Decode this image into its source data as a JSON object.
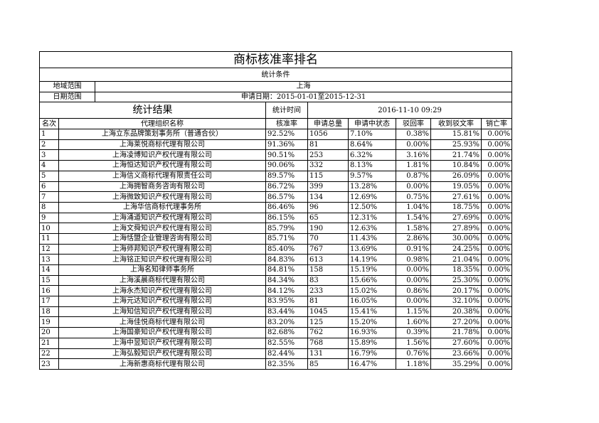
{
  "title": "商标核准率排名",
  "conditions_label": "统计条件",
  "region_label": "地域范围",
  "region_value": "上海",
  "date_label": "日期范围",
  "date_value": "申请日期：2015-01-01至2015-12-31",
  "result_label": "统计结果",
  "time_label": "统计时间",
  "time_value": "2016-11-10 09:29",
  "columns": [
    "名次",
    "代理组织名称",
    "核准率",
    "申请总量",
    "申请中状态",
    "驳回率",
    "收到驳文率",
    "销亡率"
  ],
  "rows": [
    [
      "1",
      "上海立东品牌策划事务所（普通合伙）",
      "92.52%",
      "1056",
      "7.10%",
      "0.38%",
      "15.81%",
      "0.00%"
    ],
    [
      "2",
      "上海莱悦商标代理有限公司",
      "91.36%",
      "81",
      "8.64%",
      "0.00%",
      "25.93%",
      "0.00%"
    ],
    [
      "3",
      "上海凌博知识产权代理有限公司",
      "90.51%",
      "253",
      "6.32%",
      "3.16%",
      "21.74%",
      "0.00%"
    ],
    [
      "4",
      "上海恒达知识产权代理有限公司",
      "90.06%",
      "332",
      "8.13%",
      "1.81%",
      "10.84%",
      "0.00%"
    ],
    [
      "5",
      "上海信义商标代理有限责任公司",
      "89.57%",
      "115",
      "9.57%",
      "0.87%",
      "26.09%",
      "0.00%"
    ],
    [
      "6",
      "上海拥智商务咨询有限公司",
      "86.72%",
      "399",
      "13.28%",
      "0.00%",
      "19.05%",
      "0.00%"
    ],
    [
      "7",
      "上海微致知识产权代理有限公司",
      "86.57%",
      "134",
      "12.69%",
      "0.75%",
      "27.61%",
      "0.00%"
    ],
    [
      "8",
      "上海华信商标代理事务所",
      "86.46%",
      "96",
      "12.50%",
      "1.04%",
      "18.75%",
      "0.00%"
    ],
    [
      "9",
      "上海涌道知识产权代理有限公司",
      "86.15%",
      "65",
      "12.31%",
      "1.54%",
      "27.69%",
      "0.00%"
    ],
    [
      "10",
      "上海文舜知识产权代理有限公司",
      "85.79%",
      "190",
      "12.63%",
      "1.58%",
      "27.89%",
      "0.00%"
    ],
    [
      "11",
      "上海恬盟企业管理咨询有限公司",
      "85.71%",
      "70",
      "11.43%",
      "2.86%",
      "30.00%",
      "0.00%"
    ],
    [
      "12",
      "上海师邦知识产权代理有限公司",
      "85.40%",
      "767",
      "13.69%",
      "0.91%",
      "24.25%",
      "0.00%"
    ],
    [
      "13",
      "上海铭正知识产权代理有限公司",
      "84.83%",
      "613",
      "14.19%",
      "0.98%",
      "21.04%",
      "0.00%"
    ],
    [
      "14",
      "上海名知律师事务所",
      "84.81%",
      "158",
      "15.19%",
      "0.00%",
      "18.35%",
      "0.00%"
    ],
    [
      "15",
      "上海溪晨商标代理有限公司",
      "84.34%",
      "83",
      "15.66%",
      "0.00%",
      "25.30%",
      "0.00%"
    ],
    [
      "16",
      "上海永杰知识产权代理有限公司",
      "84.12%",
      "233",
      "15.02%",
      "0.86%",
      "20.17%",
      "0.00%"
    ],
    [
      "17",
      "上海元达知识产权代理有限公司",
      "83.95%",
      "81",
      "16.05%",
      "0.00%",
      "32.10%",
      "0.00%"
    ],
    [
      "18",
      "上海知信知识产权代理有限公司",
      "83.44%",
      "1045",
      "15.41%",
      "1.15%",
      "20.38%",
      "0.00%"
    ],
    [
      "19",
      "上海佳悦商标代理有限公司",
      "83.20%",
      "125",
      "15.20%",
      "1.60%",
      "27.20%",
      "0.00%"
    ],
    [
      "20",
      "上海国豪知识产权代理有限公司",
      "82.68%",
      "762",
      "16.93%",
      "0.39%",
      "21.78%",
      "0.00%"
    ],
    [
      "21",
      "上海中昱知识产权代理有限公司",
      "82.55%",
      "768",
      "15.89%",
      "1.56%",
      "27.60%",
      "0.00%"
    ],
    [
      "22",
      "上海弘毅知识产权代理有限公司",
      "82.44%",
      "131",
      "16.79%",
      "0.76%",
      "23.66%",
      "0.00%"
    ],
    [
      "23",
      "上海新惠商标代理有限公司",
      "82.35%",
      "85",
      "16.47%",
      "1.18%",
      "35.29%",
      "0.00%"
    ]
  ]
}
